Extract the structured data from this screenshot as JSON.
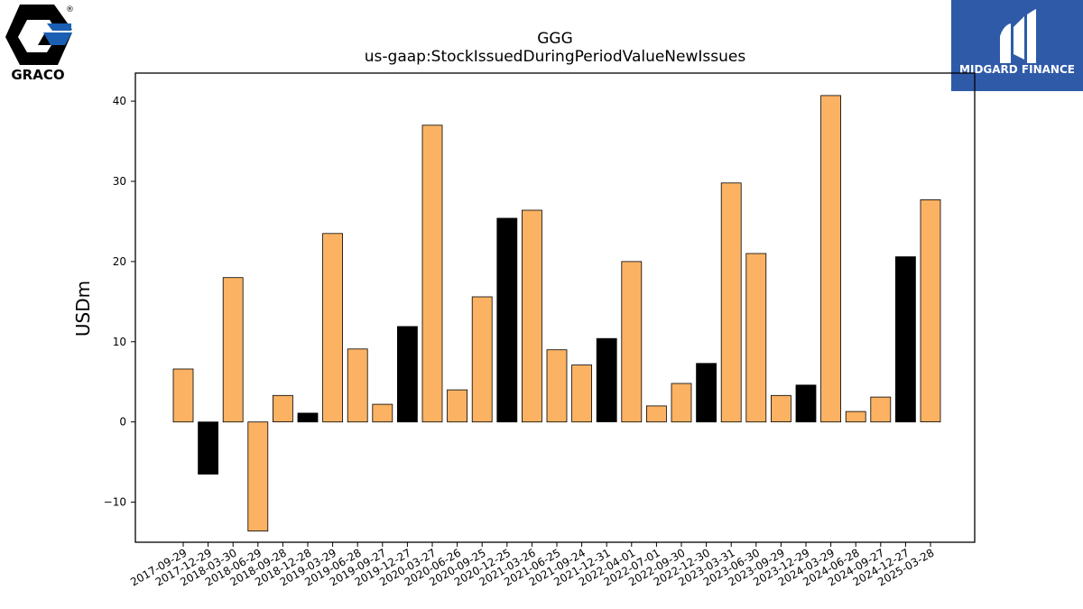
{
  "brand": {
    "left_logo_text": "GRACO",
    "left_logo_mark": "®",
    "right_logo_text": "MIDGARD FINANCE"
  },
  "colors": {
    "positive": "#fbb263",
    "negative": "#000000",
    "brand_box": "#2f5aa8"
  },
  "chart_data": {
    "type": "bar",
    "title": "GGG",
    "subtitle": "us-gaap:StockIssuedDuringPeriodValueNewIssues",
    "xlabel": "",
    "ylabel": "USDm",
    "ylim": [
      -15,
      43.5
    ],
    "yticks": [
      -10,
      0,
      10,
      20,
      30,
      40
    ],
    "grid": false,
    "categories": [
      "2017-09-29",
      "2017-12-29",
      "2018-03-30",
      "2018-06-29",
      "2018-09-28",
      "2018-12-28",
      "2019-03-29",
      "2019-06-28",
      "2019-09-27",
      "2019-12-27",
      "2020-03-27",
      "2020-06-26",
      "2020-09-25",
      "2020-12-25",
      "2021-03-26",
      "2021-06-25",
      "2021-09-24",
      "2021-12-31",
      "2022-04-01",
      "2022-07-01",
      "2022-09-30",
      "2022-12-30",
      "2023-03-31",
      "2023-06-30",
      "2023-09-29",
      "2023-12-29",
      "2024-03-29",
      "2024-06-28",
      "2024-09-27",
      "2024-12-27",
      "2025-03-28"
    ],
    "values": [
      6.6,
      -6.5,
      18.0,
      -13.6,
      3.3,
      1.1,
      23.5,
      9.1,
      2.2,
      11.9,
      37.0,
      4.0,
      15.6,
      25.4,
      26.4,
      9.0,
      7.1,
      10.4,
      20.0,
      2.0,
      4.8,
      7.3,
      29.8,
      21.0,
      3.3,
      4.6,
      40.7,
      1.3,
      3.1,
      20.6,
      27.7
    ],
    "fiscal_year_end": [
      false,
      true,
      false,
      false,
      false,
      true,
      false,
      false,
      false,
      true,
      false,
      false,
      false,
      true,
      false,
      false,
      false,
      true,
      false,
      false,
      false,
      true,
      false,
      false,
      false,
      true,
      false,
      false,
      false,
      true,
      false
    ]
  }
}
